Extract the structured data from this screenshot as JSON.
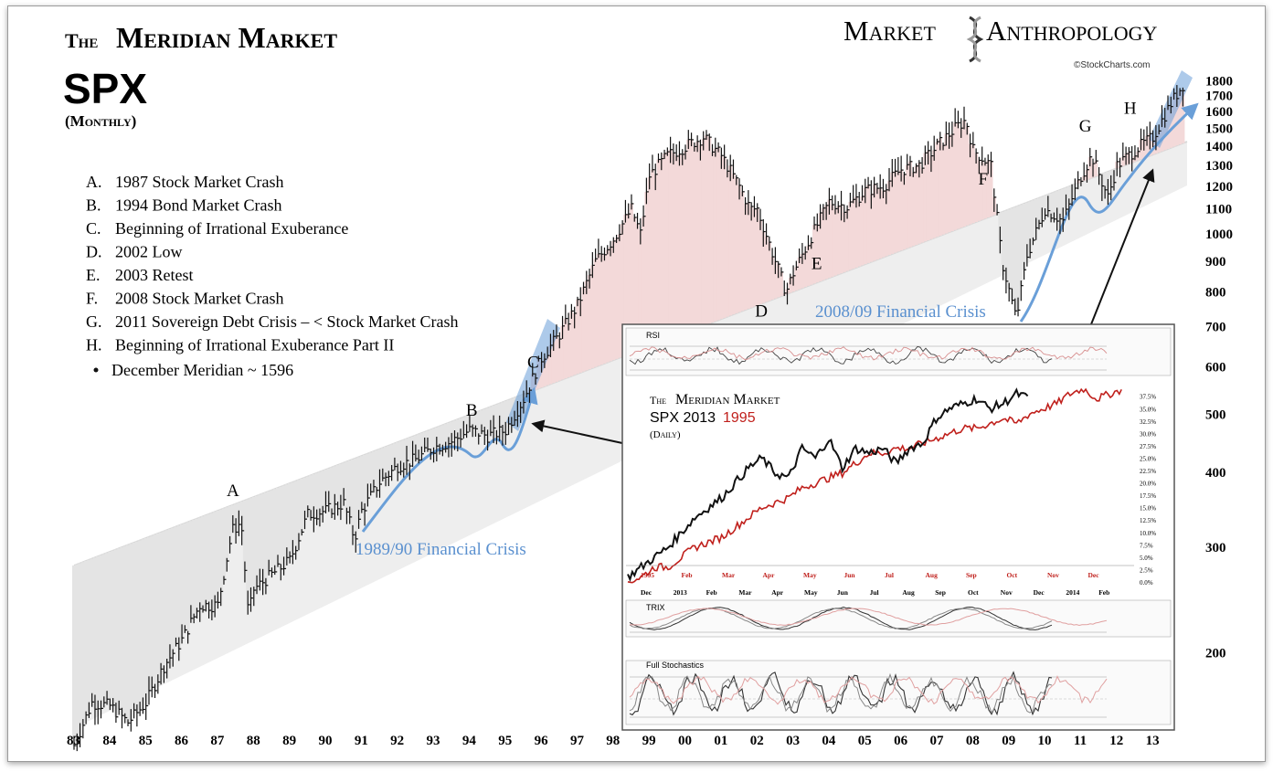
{
  "title": {
    "the": "The",
    "meridian_market": "Meridian Market",
    "symbol": "SPX",
    "period": "(Monthly)"
  },
  "brand": {
    "left": "Market",
    "right": "Anthropology",
    "source": "©StockCharts.com"
  },
  "legend": [
    {
      "letter": "A.",
      "text": "1987 Stock Market Crash"
    },
    {
      "letter": "B.",
      "text": "1994 Bond Market Crash"
    },
    {
      "letter": "C.",
      "text": "Beginning of Irrational Exuberance"
    },
    {
      "letter": "D.",
      "text": "2002 Low"
    },
    {
      "letter": "E.",
      "text": "2003 Retest"
    },
    {
      "letter": "F.",
      "text": "2008 Stock Market Crash"
    },
    {
      "letter": "G.",
      "text": "2011 Sovereign Debt Crisis – < Stock Market Crash"
    },
    {
      "letter": "H.",
      "text": "Beginning of Irrational Exuberance Part II"
    }
  ],
  "meridian_note": "December Meridian ~ 1596",
  "annotations": {
    "crisis_8990": "1989/90 Financial Crisis",
    "crisis_0809": "2008/09 Financial Crisis"
  },
  "colors": {
    "price": "#111111",
    "arrow": "#6a9fd8",
    "band": "#e9e9e9",
    "red_fill": "#f3d9d9",
    "red_line": "#c0201c"
  },
  "chart_data": {
    "type": "line",
    "title": "SPX",
    "scale": "log",
    "ylim": [
      155,
      1900
    ],
    "y_ticks": [
      1800,
      1700,
      1600,
      1500,
      1400,
      1300,
      1200,
      1100,
      1000,
      900,
      800,
      700,
      600,
      500,
      400,
      300,
      200
    ],
    "x_ticks": [
      "83",
      "84",
      "85",
      "86",
      "87",
      "88",
      "89",
      "90",
      "91",
      "92",
      "93",
      "94",
      "95",
      "96",
      "97",
      "98",
      "99",
      "00",
      "01",
      "02",
      "03",
      "04",
      "05",
      "06",
      "07",
      "08",
      "09",
      "10",
      "11",
      "12",
      "13"
    ],
    "series": [
      {
        "x": [
          1983,
          1983.5,
          1984,
          1984.5,
          1985,
          1985.5,
          1986,
          1986.5,
          1987,
          1987.4,
          1987.65,
          1987.85,
          1988,
          1988.5,
          1989,
          1989.5,
          1990,
          1990.5,
          1990.8,
          1991,
          1991.5,
          1992,
          1992.5,
          1993,
          1993.5,
          1994,
          1994.5,
          1995,
          1995.5,
          1996,
          1996.5,
          1997,
          1997.5,
          1998,
          1998.5,
          1998.75,
          1999,
          1999.5,
          2000,
          2000.5,
          2001,
          2001.5,
          2001.8,
          2002,
          2002.5,
          2002.8,
          2003,
          2003.5,
          2004,
          2004.5,
          2005,
          2005.5,
          2006,
          2006.5,
          2007,
          2007.5,
          2007.8,
          2008,
          2008.5,
          2008.8,
          2009.2,
          2009.5,
          2010,
          2010.5,
          2011,
          2011.3,
          2011.75,
          2012,
          2012.5,
          2013,
          2013.5,
          2013.9
        ],
        "y": [
          140,
          165,
          163,
          153,
          165,
          190,
          210,
          240,
          240,
          320,
          330,
          230,
          255,
          270,
          285,
          340,
          345,
          355,
          310,
          345,
          385,
          410,
          420,
          440,
          450,
          470,
          460,
          470,
          530,
          620,
          680,
          760,
          900,
          980,
          1100,
          1000,
          1250,
          1350,
          1400,
          1450,
          1350,
          1200,
          1100,
          1100,
          900,
          800,
          860,
          990,
          1130,
          1110,
          1180,
          1200,
          1280,
          1300,
          1400,
          1500,
          1550,
          1380,
          1300,
          900,
          720,
          920,
          1100,
          1050,
          1250,
          1350,
          1150,
          1300,
          1380,
          1450,
          1650,
          1800
        ]
      }
    ],
    "labels": [
      "A",
      "B",
      "C",
      "D",
      "E",
      "F",
      "G",
      "H"
    ]
  },
  "inset": {
    "title_the": "The",
    "title_rest": "Meridian Market",
    "sub_black": "SPX 2013",
    "sub_red": "1995",
    "period": "(Daily)",
    "rsi": "RSI",
    "trix": "TRIX",
    "stoch": "Full Stochastics",
    "months_1995": [
      "1995",
      "Feb",
      "Mar",
      "Apr",
      "May",
      "Jun",
      "Jul",
      "Aug",
      "Sep",
      "Oct",
      "Nov",
      "Dec"
    ],
    "months_2013": [
      "Dec",
      "2013",
      "Feb",
      "Mar",
      "Apr",
      "May",
      "Jun",
      "Jul",
      "Aug",
      "Sep",
      "Oct",
      "Nov",
      "Dec",
      "2014",
      "Feb"
    ],
    "pct_ticks": [
      "37.5%",
      "35.0%",
      "32.5%",
      "30.0%",
      "27.5%",
      "25.0%",
      "22.5%",
      "20.0%",
      "17.5%",
      "15.0%",
      "12.5%",
      "10.0%",
      "7.5%",
      "5.0%",
      "2.5%",
      "0.0%"
    ],
    "chart_data": {
      "type": "line",
      "ylim": [
        0,
        38
      ],
      "series": [
        {
          "name": "SPX 2013",
          "color": "#111111",
          "x": [
            0,
            4,
            8,
            12,
            16,
            20,
            24,
            28,
            32,
            36,
            40,
            44,
            48,
            52,
            56,
            60,
            64,
            68,
            72,
            76,
            80,
            84,
            88,
            92,
            96,
            100,
            104,
            108,
            112,
            116,
            120
          ],
          "y": [
            1,
            3,
            5,
            7,
            10,
            13,
            15,
            17,
            20,
            23,
            25,
            22,
            21,
            27,
            25,
            29,
            23,
            27,
            26,
            27,
            24,
            27,
            28,
            33,
            35,
            36,
            37,
            35,
            36,
            38,
            37
          ]
        },
        {
          "name": "1995",
          "color": "#c0201c",
          "x": [
            0,
            4,
            8,
            12,
            16,
            20,
            24,
            28,
            32,
            36,
            40,
            44,
            48,
            52,
            56,
            60,
            64,
            68,
            72,
            76,
            80,
            84,
            88,
            92,
            96,
            100,
            104,
            108,
            112,
            116,
            120,
            124,
            128,
            132,
            136,
            140,
            144,
            148
          ],
          "y": [
            0,
            1,
            3,
            3,
            5,
            7,
            8,
            9,
            11,
            13,
            15,
            16,
            17,
            19,
            20,
            21,
            22,
            24,
            26,
            26,
            27,
            27,
            28,
            29,
            30,
            31,
            31,
            32,
            33,
            32,
            34,
            35,
            36,
            38,
            39,
            37,
            38,
            39
          ]
        }
      ]
    }
  }
}
